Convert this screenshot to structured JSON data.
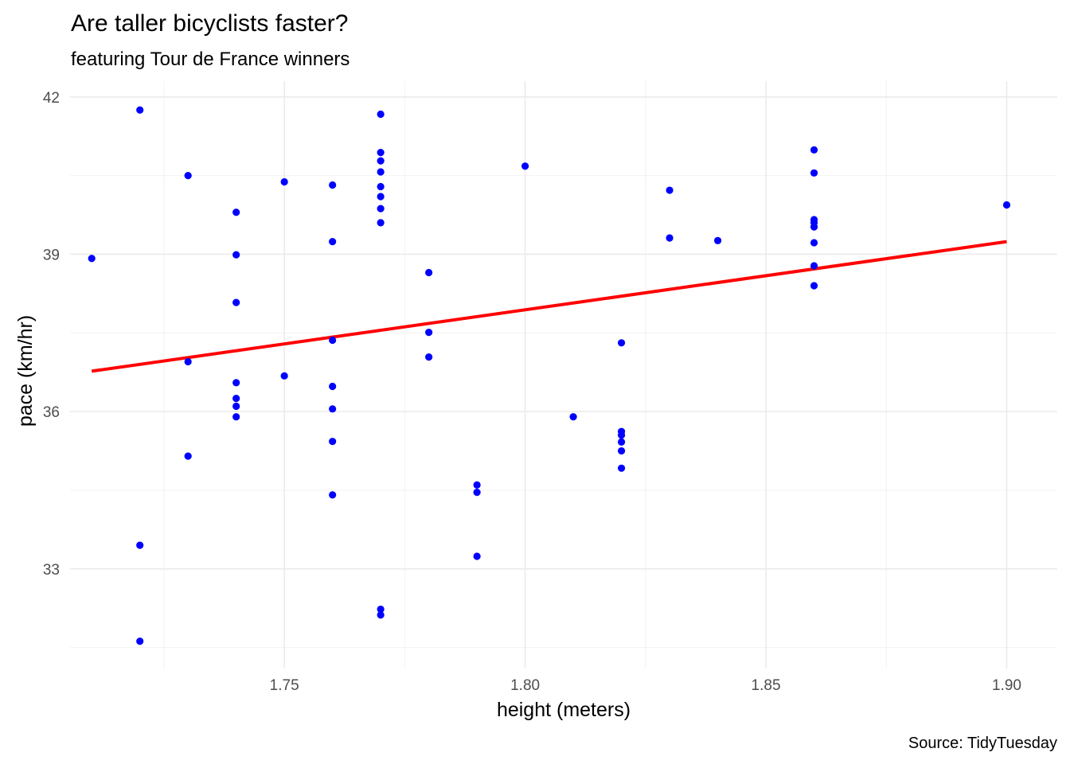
{
  "chart_data": {
    "type": "scatter",
    "title": "Are taller bicyclists faster?",
    "subtitle": "featuring Tour de France winners",
    "xlabel": "height (meters)",
    "ylabel": "pace (km/hr)",
    "caption": "Source: TidyTuesday",
    "xlim": [
      1.7055,
      1.9105
    ],
    "ylim": [
      31.1,
      42.3
    ],
    "x_ticks": [
      "1.75",
      "1.80",
      "1.85",
      "1.90"
    ],
    "x_tick_values": [
      1.75,
      1.8,
      1.85,
      1.9
    ],
    "x_minor_values": [
      1.725,
      1.775,
      1.825,
      1.875
    ],
    "y_ticks": [
      "33",
      "36",
      "39",
      "42"
    ],
    "y_tick_values": [
      33,
      36,
      39,
      42
    ],
    "y_minor_values": [
      31.5,
      34.5,
      37.5,
      40.5
    ],
    "grid": true,
    "point_color": "#0000ff",
    "trend_color": "#ff0000",
    "points": [
      [
        1.71,
        38.92
      ],
      [
        1.72,
        41.75
      ],
      [
        1.72,
        33.45
      ],
      [
        1.72,
        31.62
      ],
      [
        1.73,
        40.5
      ],
      [
        1.73,
        36.95
      ],
      [
        1.73,
        35.15
      ],
      [
        1.74,
        39.8
      ],
      [
        1.74,
        38.99
      ],
      [
        1.74,
        38.08
      ],
      [
        1.74,
        36.55
      ],
      [
        1.74,
        36.25
      ],
      [
        1.74,
        36.1
      ],
      [
        1.74,
        35.9
      ],
      [
        1.75,
        40.38
      ],
      [
        1.75,
        36.68
      ],
      [
        1.76,
        40.32
      ],
      [
        1.76,
        39.24
      ],
      [
        1.76,
        37.36
      ],
      [
        1.76,
        36.48
      ],
      [
        1.76,
        36.05
      ],
      [
        1.76,
        35.43
      ],
      [
        1.76,
        34.41
      ],
      [
        1.77,
        41.67
      ],
      [
        1.77,
        40.94
      ],
      [
        1.77,
        40.78
      ],
      [
        1.77,
        40.57
      ],
      [
        1.77,
        40.29
      ],
      [
        1.77,
        40.1
      ],
      [
        1.77,
        39.87
      ],
      [
        1.77,
        39.6
      ],
      [
        1.77,
        32.23
      ],
      [
        1.77,
        32.12
      ],
      [
        1.78,
        38.65
      ],
      [
        1.78,
        37.51
      ],
      [
        1.78,
        37.04
      ],
      [
        1.79,
        34.6
      ],
      [
        1.79,
        34.46
      ],
      [
        1.79,
        33.24
      ],
      [
        1.8,
        40.68
      ],
      [
        1.81,
        35.9
      ],
      [
        1.82,
        37.31
      ],
      [
        1.82,
        35.62
      ],
      [
        1.82,
        35.55
      ],
      [
        1.82,
        35.42
      ],
      [
        1.82,
        35.25
      ],
      [
        1.82,
        34.92
      ],
      [
        1.83,
        40.22
      ],
      [
        1.83,
        39.31
      ],
      [
        1.84,
        39.26
      ],
      [
        1.86,
        40.99
      ],
      [
        1.86,
        40.55
      ],
      [
        1.86,
        39.66
      ],
      [
        1.86,
        39.6
      ],
      [
        1.86,
        39.52
      ],
      [
        1.86,
        39.22
      ],
      [
        1.86,
        38.78
      ],
      [
        1.86,
        38.4
      ],
      [
        1.9,
        39.94
      ]
    ],
    "trend_line": [
      [
        1.71,
        36.77
      ],
      [
        1.9,
        39.24
      ]
    ]
  }
}
